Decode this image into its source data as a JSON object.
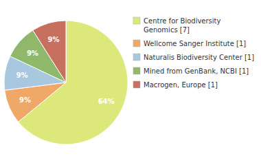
{
  "chart_data": {
    "type": "pie",
    "labels": [
      "Centre for Biodiversity\nGenomics [7]",
      "Wellcome Sanger Institute [1]",
      "Naturalis Biodiversity Center [1]",
      "Mined from GenBank, NCBI [1]",
      "Macrogen, Europe [1]"
    ],
    "values": [
      64,
      9,
      9,
      9,
      9
    ],
    "value_labels": [
      "64%",
      "9%",
      "9%",
      "9%",
      "9%"
    ],
    "colors": [
      "#dde87a",
      "#f0a868",
      "#a8c8e0",
      "#8fb86a",
      "#c87060"
    ],
    "data_labels": true,
    "legend": "right"
  }
}
